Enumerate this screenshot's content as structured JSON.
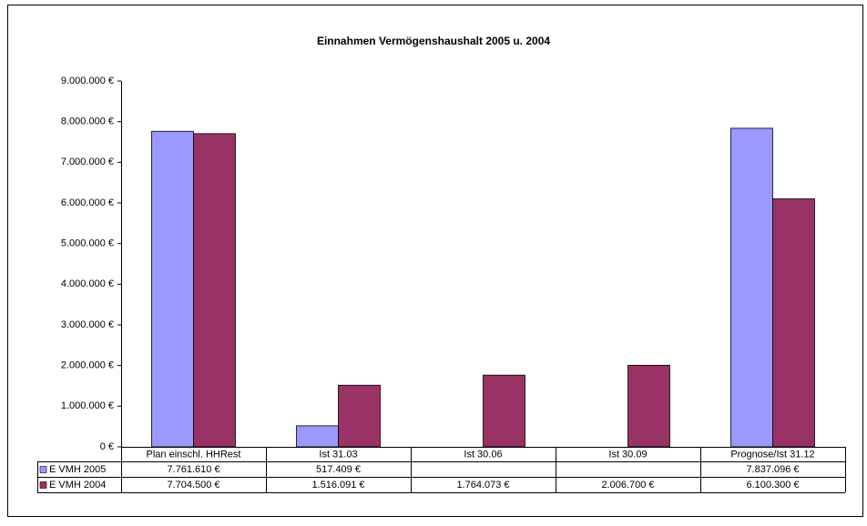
{
  "chart_data": {
    "type": "bar",
    "title": "Einnahmen Vermögenshaushalt 2005 u. 2004",
    "categories": [
      "Plan einschl. HHRest",
      "Ist 31.03",
      "Ist 30.06",
      "Ist 30.09",
      "Prognose/Ist 31.12"
    ],
    "series": [
      {
        "name": "E VMH 2005",
        "color": "#9999ff",
        "values": [
          7761610,
          517409,
          null,
          null,
          7837096
        ],
        "value_labels": [
          "7.761.610 €",
          "517.409 €",
          null,
          null,
          "7.837.096 €"
        ]
      },
      {
        "name": "E VMH 2004",
        "color": "#993366",
        "values": [
          7704500,
          1516091,
          1764073,
          2006700,
          6100300
        ],
        "value_labels": [
          "7.704.500 €",
          "1.516.091 €",
          "1.764.073 €",
          "2.006.700 €",
          "6.100.300 €"
        ]
      }
    ],
    "ylim": [
      0,
      9000000
    ],
    "yticks": [
      {
        "value": 0,
        "label": "0 €"
      },
      {
        "value": 1000000,
        "label": "1.000.000 €"
      },
      {
        "value": 2000000,
        "label": "2.000.000 €"
      },
      {
        "value": 3000000,
        "label": "3.000.000 €"
      },
      {
        "value": 4000000,
        "label": "4.000.000 €"
      },
      {
        "value": 5000000,
        "label": "5.000.000 €"
      },
      {
        "value": 6000000,
        "label": "6.000.000 €"
      },
      {
        "value": 7000000,
        "label": "7.000.000 €"
      },
      {
        "value": 8000000,
        "label": "8.000.000 €"
      },
      {
        "value": 9000000,
        "label": "9.000.000 €"
      }
    ],
    "grid": false
  }
}
